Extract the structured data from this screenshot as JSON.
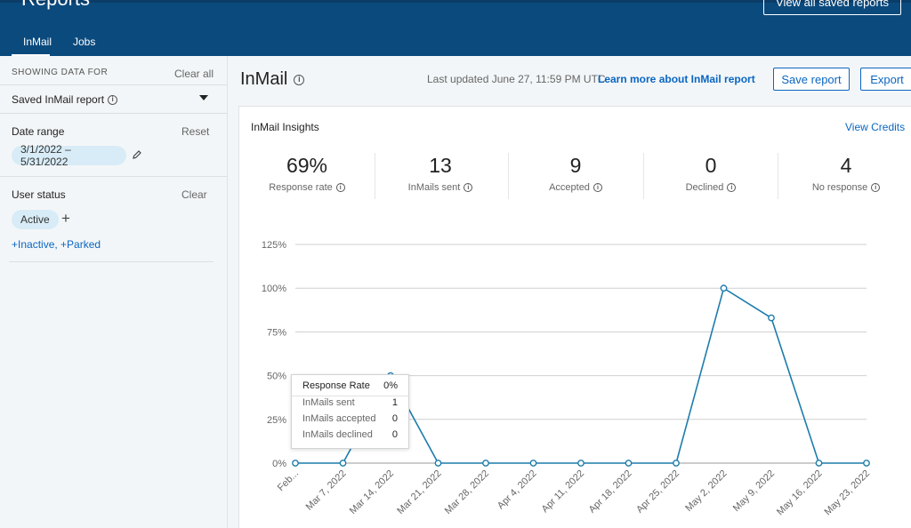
{
  "header": {
    "page_title": "Reports",
    "view_saved_label": "View all saved reports",
    "tabs": [
      {
        "label": "InMail",
        "active": true
      },
      {
        "label": "Jobs",
        "active": false
      }
    ]
  },
  "sidebar": {
    "showing_label": "SHOWING DATA FOR",
    "clear_all": "Clear all",
    "saved_report": "Saved InMail report",
    "date_range_label": "Date range",
    "reset": "Reset",
    "date_value": "3/1/2022 – 5/31/2022",
    "user_status_label": "User status",
    "clear": "Clear",
    "status_pill": "Active",
    "more_statuses": "+Inactive, +Parked"
  },
  "main": {
    "title": "InMail",
    "last_updated": "Last updated June 27, 11:59 PM UTC",
    "learn_more": "Learn more about InMail report",
    "save_report": "Save report",
    "export": "Export"
  },
  "card": {
    "title": "InMail Insights",
    "view_credits": "View Credits",
    "metrics": [
      {
        "value": "69%",
        "label": "Response rate"
      },
      {
        "value": "13",
        "label": "InMails sent"
      },
      {
        "value": "9",
        "label": "Accepted"
      },
      {
        "value": "0",
        "label": "Declined"
      },
      {
        "value": "4",
        "label": "No response"
      }
    ]
  },
  "tooltip": {
    "title": "Response Rate",
    "title_value": "0%",
    "rows": [
      {
        "label": "InMails sent",
        "value": "1"
      },
      {
        "label": "InMails accepted",
        "value": "0"
      },
      {
        "label": "InMails declined",
        "value": "0"
      }
    ]
  },
  "colors": {
    "accent": "#0a66c2",
    "header": "#0b4a7d",
    "line": "#1d7cab"
  },
  "chart_data": {
    "type": "line",
    "x": [
      "Feb...",
      "Mar 7, 2022",
      "Mar 14, 2022",
      "Mar 21, 2022",
      "Mar 28, 2022",
      "Apr 4, 2022",
      "Apr 11, 2022",
      "Apr 18, 2022",
      "Apr 25, 2022",
      "May 2, 2022",
      "May 9, 2022",
      "May 16, 2022",
      "May 23, 2022"
    ],
    "series": [
      {
        "values": [
          0,
          0,
          50,
          0,
          0,
          0,
          0,
          0,
          0,
          100,
          83,
          0,
          0
        ]
      }
    ],
    "y_ticks": [
      "0%",
      "25%",
      "50%",
      "75%",
      "100%",
      "125%"
    ],
    "ylim": [
      0,
      125
    ],
    "grid": true
  }
}
